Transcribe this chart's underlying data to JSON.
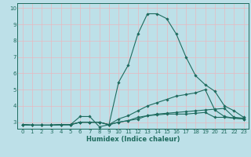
{
  "xlabel": "Humidex (Indice chaleur)",
  "ylabel": "",
  "background_color": "#bde0e8",
  "grid_color": "#e8f8fc",
  "line_color": "#1e6b5e",
  "xlim": [
    -0.5,
    23.5
  ],
  "ylim": [
    2.6,
    10.3
  ],
  "xticks": [
    0,
    1,
    2,
    3,
    4,
    5,
    6,
    7,
    8,
    9,
    10,
    11,
    12,
    13,
    14,
    15,
    16,
    17,
    18,
    19,
    20,
    21,
    22,
    23
  ],
  "yticks": [
    3,
    4,
    5,
    6,
    7,
    8,
    9,
    10
  ],
  "series": [
    {
      "x": [
        0,
        1,
        2,
        3,
        4,
        5,
        6,
        7,
        8,
        9,
        10,
        11,
        12,
        13,
        14,
        15,
        16,
        17,
        18,
        19,
        20,
        21,
        22,
        23
      ],
      "y": [
        2.85,
        2.82,
        2.82,
        2.82,
        2.85,
        2.85,
        3.35,
        3.35,
        2.72,
        2.85,
        5.45,
        6.5,
        8.4,
        9.65,
        9.65,
        9.35,
        8.4,
        7.0,
        5.85,
        5.3,
        4.9,
        4.0,
        3.7,
        3.3
      ]
    },
    {
      "x": [
        0,
        1,
        2,
        3,
        4,
        5,
        6,
        7,
        8,
        9,
        10,
        11,
        12,
        13,
        14,
        15,
        16,
        17,
        18,
        19,
        20,
        21,
        22,
        23
      ],
      "y": [
        2.85,
        2.82,
        2.82,
        2.82,
        2.85,
        2.85,
        3.0,
        3.0,
        3.0,
        2.85,
        3.2,
        3.4,
        3.7,
        4.0,
        4.2,
        4.4,
        4.6,
        4.7,
        4.8,
        5.0,
        3.75,
        3.35,
        3.25,
        3.2
      ]
    },
    {
      "x": [
        0,
        1,
        2,
        3,
        4,
        5,
        6,
        7,
        8,
        9,
        10,
        11,
        12,
        13,
        14,
        15,
        16,
        17,
        18,
        19,
        20,
        21,
        22,
        23
      ],
      "y": [
        2.85,
        2.82,
        2.82,
        2.82,
        2.85,
        2.85,
        3.0,
        3.0,
        3.0,
        2.85,
        3.0,
        3.1,
        3.3,
        3.4,
        3.5,
        3.55,
        3.6,
        3.65,
        3.7,
        3.75,
        3.8,
        3.85,
        3.3,
        3.25
      ]
    },
    {
      "x": [
        0,
        1,
        2,
        3,
        4,
        5,
        6,
        7,
        8,
        9,
        10,
        11,
        12,
        13,
        14,
        15,
        16,
        17,
        18,
        19,
        20,
        21,
        22,
        23
      ],
      "y": [
        2.85,
        2.82,
        2.82,
        2.82,
        2.85,
        2.85,
        3.0,
        3.0,
        3.0,
        2.85,
        3.0,
        3.1,
        3.2,
        3.4,
        3.45,
        3.5,
        3.5,
        3.5,
        3.55,
        3.6,
        3.3,
        3.3,
        3.25,
        3.2
      ]
    }
  ]
}
